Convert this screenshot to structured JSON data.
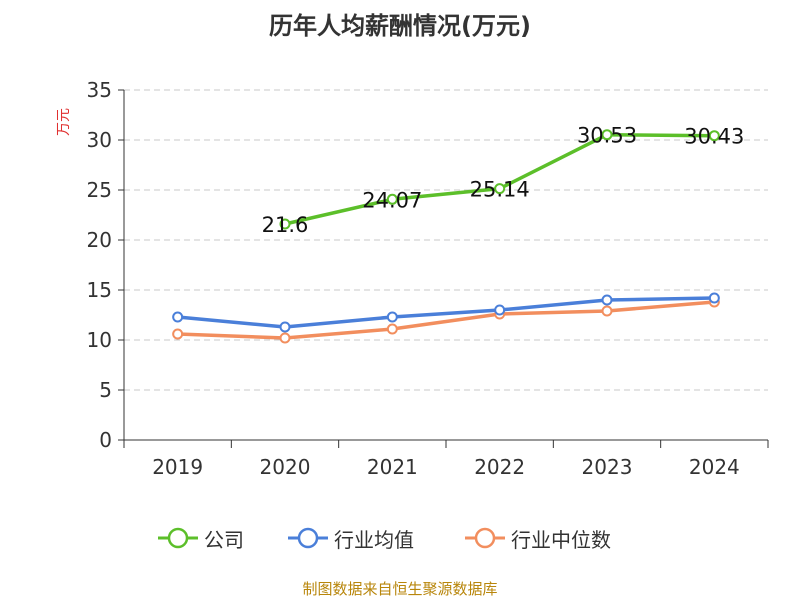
{
  "chart_data": {
    "type": "line",
    "title": "历年人均薪酬情况(万元)",
    "ylabel": "万元",
    "xlabel": "",
    "categories": [
      "2019",
      "2020",
      "2021",
      "2022",
      "2023",
      "2024"
    ],
    "ylim": [
      0,
      35
    ],
    "yticks": [
      0,
      5,
      10,
      15,
      20,
      25,
      30,
      35
    ],
    "grid": true,
    "legend_position": "bottom",
    "series": [
      {
        "name": "公司",
        "color": "#5cbf2a",
        "values": [
          null,
          21.6,
          24.07,
          25.14,
          30.53,
          30.43
        ],
        "labels": [
          "",
          "21.6",
          "24.07",
          "25.14",
          "30.53",
          "30.43"
        ]
      },
      {
        "name": "行业均值",
        "color": "#4a7fd9",
        "values": [
          12.3,
          11.3,
          12.3,
          13.0,
          14.0,
          14.2
        ]
      },
      {
        "name": "行业中位数",
        "color": "#f28e5e",
        "values": [
          10.6,
          10.2,
          11.1,
          12.6,
          12.9,
          13.8
        ]
      }
    ],
    "source": "制图数据来自恒生聚源数据库"
  }
}
